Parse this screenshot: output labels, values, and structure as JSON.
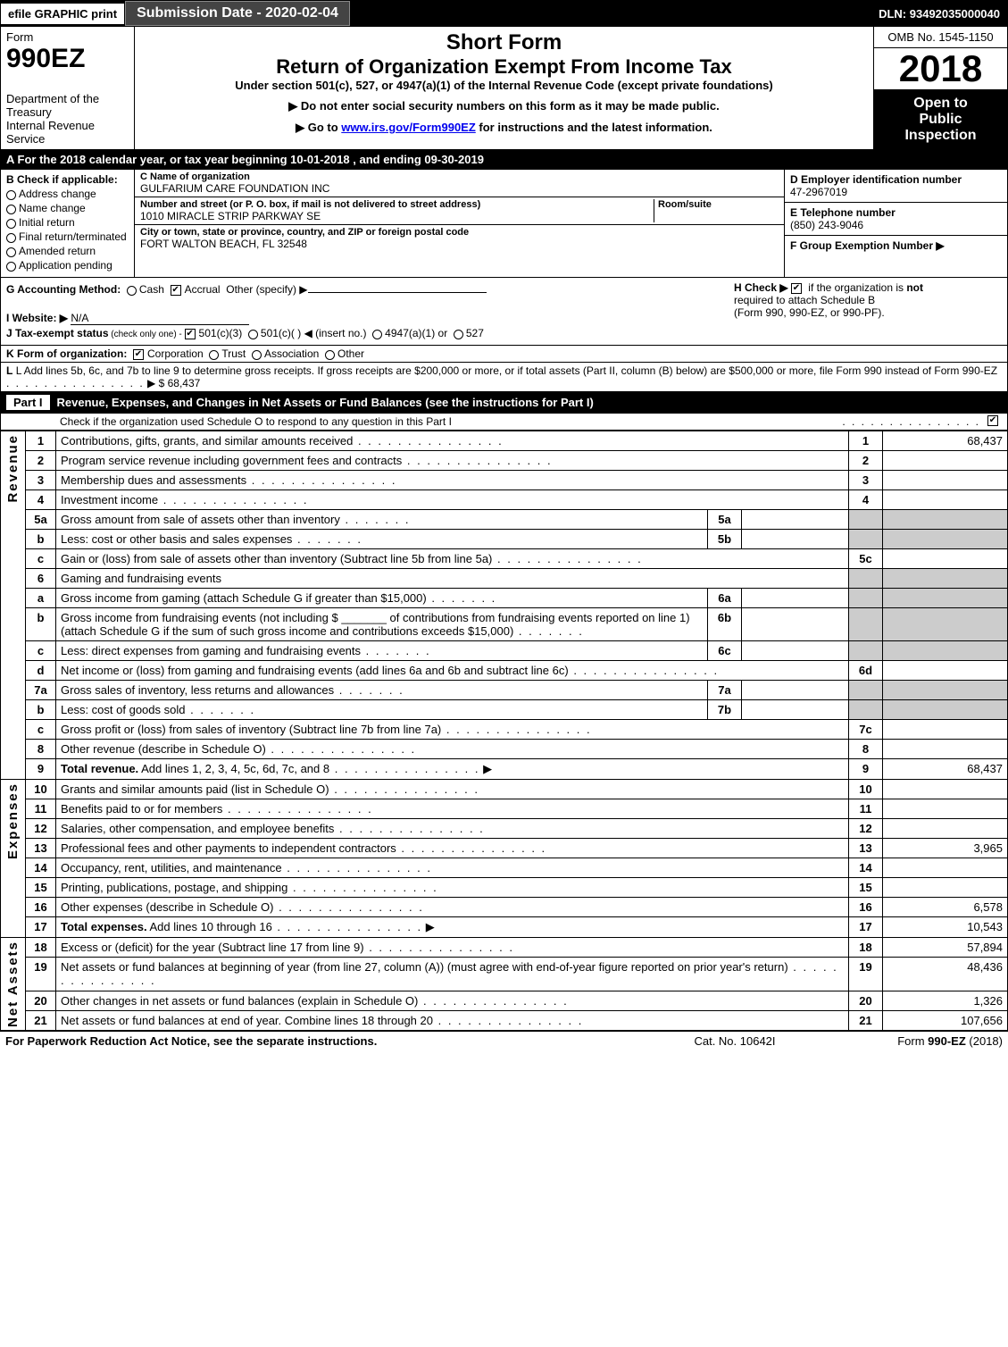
{
  "topbar": {
    "efile": "efile GRAPHIC print",
    "subdate_label": "Submission Date - ",
    "subdate": "2020-02-04",
    "dln_label": "DLN: ",
    "dln": "93492035000040"
  },
  "header": {
    "form_label": "Form",
    "form_number": "990EZ",
    "dept1": "Department of the Treasury",
    "dept2": "Internal Revenue Service",
    "short_form": "Short Form",
    "title": "Return of Organization Exempt From Income Tax",
    "subtitle": "Under section 501(c), 527, or 4947(a)(1) of the Internal Revenue Code (except private foundations)",
    "note1": "▶ Do not enter social security numbers on this form as it may be made public.",
    "note2_pre": "▶ Go to ",
    "note2_link": "www.irs.gov/Form990EZ",
    "note2_post": " for instructions and the latest information.",
    "omb": "OMB No. 1545-1150",
    "year": "2018",
    "inspect1": "Open to",
    "inspect2": "Public",
    "inspect3": "Inspection"
  },
  "period": {
    "text_a": "A  For the 2018 calendar year, or tax year beginning ",
    "begin": "10-01-2018",
    "text_b": " , and ending ",
    "end": "09-30-2019"
  },
  "sectionB": {
    "label": "B  Check if applicable:",
    "opts": [
      "Address change",
      "Name change",
      "Initial return",
      "Final return/terminated",
      "Amended return",
      "Application pending"
    ]
  },
  "sectionC": {
    "name_lbl": "C Name of organization",
    "name": "GULFARIUM CARE FOUNDATION INC",
    "addr_lbl": "Number and street (or P. O. box, if mail is not delivered to street address)",
    "room_lbl": "Room/suite",
    "addr": "1010 MIRACLE STRIP PARKWAY SE",
    "city_lbl": "City or town, state or province, country, and ZIP or foreign postal code",
    "city": "FORT WALTON BEACH, FL  32548"
  },
  "sectionD": {
    "ein_lbl": "D Employer identification number",
    "ein": "47-2967019",
    "tel_lbl": "E Telephone number",
    "tel": "(850) 243-9046",
    "grp_lbl": "F Group Exemption Number  ▶"
  },
  "meta": {
    "g_label": "G Accounting Method:",
    "g_cash": "Cash",
    "g_accrual": "Accrual",
    "g_other": "Other (specify) ▶",
    "h_label": "H  Check ▶",
    "h_text1": " if the organization is ",
    "h_not": "not",
    "h_text2": " required to attach Schedule B",
    "h_text3": "(Form 990, 990-EZ, or 990-PF).",
    "i_label": "I Website: ▶",
    "i_val": "N/A",
    "j_label": "J Tax-exempt status",
    "j_note": " (check only one) - ",
    "j_501c3": "501(c)(3)",
    "j_501c": "501(c)(  ) ◀ (insert no.)",
    "j_4947": "4947(a)(1) or",
    "j_527": "527"
  },
  "k": {
    "label": "K Form of organization:",
    "corp": "Corporation",
    "trust": "Trust",
    "assoc": "Association",
    "other": "Other"
  },
  "l": {
    "text1": "L Add lines 5b, 6c, and 7b to line 9 to determine gross receipts. If gross receipts are $200,000 or more, or if total assets (Part II, column (B) below) are $500,000 or more, file Form 990 instead of Form 990-EZ",
    "amount_label": "▶ $ ",
    "amount": "68,437"
  },
  "part1": {
    "tag": "Part I",
    "title": "Revenue, Expenses, and Changes in Net Assets or Fund Balances (see the instructions for Part I)",
    "check_line": "Check if the organization used Schedule O to respond to any question in this Part I"
  },
  "sections": {
    "revenue": "Revenue",
    "expenses": "Expenses",
    "netassets": "Net Assets"
  },
  "rows": [
    {
      "n": "1",
      "d": "Contributions, gifts, grants, and similar amounts received",
      "r": "1",
      "a": "68,437"
    },
    {
      "n": "2",
      "d": "Program service revenue including government fees and contracts",
      "r": "2",
      "a": ""
    },
    {
      "n": "3",
      "d": "Membership dues and assessments",
      "r": "3",
      "a": ""
    },
    {
      "n": "4",
      "d": "Investment income",
      "r": "4",
      "a": ""
    },
    {
      "n": "5a",
      "d": "Gross amount from sale of assets other than inventory",
      "sub": "5a",
      "subval": ""
    },
    {
      "n": "b",
      "d": "Less: cost or other basis and sales expenses",
      "sub": "5b",
      "subval": ""
    },
    {
      "n": "c",
      "d": "Gain or (loss) from sale of assets other than inventory (Subtract line 5b from line 5a)",
      "r": "5c",
      "a": ""
    },
    {
      "n": "6",
      "d": "Gaming and fundraising events",
      "plain": true
    },
    {
      "n": "a",
      "d": "Gross income from gaming (attach Schedule G if greater than $15,000)",
      "sub": "6a",
      "subval": ""
    },
    {
      "n": "b",
      "d": "Gross income from fundraising events (not including $ _______ of contributions from fundraising events reported on line 1) (attach Schedule G if the sum of such gross income and contributions exceeds $15,000)",
      "sub": "6b",
      "subval": ""
    },
    {
      "n": "c",
      "d": "Less: direct expenses from gaming and fundraising events",
      "sub": "6c",
      "subval": ""
    },
    {
      "n": "d",
      "d": "Net income or (loss) from gaming and fundraising events (add lines 6a and 6b and subtract line 6c)",
      "r": "6d",
      "a": ""
    },
    {
      "n": "7a",
      "d": "Gross sales of inventory, less returns and allowances",
      "sub": "7a",
      "subval": ""
    },
    {
      "n": "b",
      "d": "Less: cost of goods sold",
      "sub": "7b",
      "subval": ""
    },
    {
      "n": "c",
      "d": "Gross profit or (loss) from sales of inventory (Subtract line 7b from line 7a)",
      "r": "7c",
      "a": ""
    },
    {
      "n": "8",
      "d": "Other revenue (describe in Schedule O)",
      "r": "8",
      "a": ""
    },
    {
      "n": "9",
      "d": "Total revenue. Add lines 1, 2, 3, 4, 5c, 6d, 7c, and 8",
      "r": "9",
      "a": "68,437",
      "bold": true,
      "arrow": true
    }
  ],
  "exp_rows": [
    {
      "n": "10",
      "d": "Grants and similar amounts paid (list in Schedule O)",
      "r": "10",
      "a": ""
    },
    {
      "n": "11",
      "d": "Benefits paid to or for members",
      "r": "11",
      "a": ""
    },
    {
      "n": "12",
      "d": "Salaries, other compensation, and employee benefits",
      "r": "12",
      "a": ""
    },
    {
      "n": "13",
      "d": "Professional fees and other payments to independent contractors",
      "r": "13",
      "a": "3,965"
    },
    {
      "n": "14",
      "d": "Occupancy, rent, utilities, and maintenance",
      "r": "14",
      "a": ""
    },
    {
      "n": "15",
      "d": "Printing, publications, postage, and shipping",
      "r": "15",
      "a": ""
    },
    {
      "n": "16",
      "d": "Other expenses (describe in Schedule O)",
      "r": "16",
      "a": "6,578"
    },
    {
      "n": "17",
      "d": "Total expenses. Add lines 10 through 16",
      "r": "17",
      "a": "10,543",
      "bold": true,
      "arrow": true
    }
  ],
  "na_rows": [
    {
      "n": "18",
      "d": "Excess or (deficit) for the year (Subtract line 17 from line 9)",
      "r": "18",
      "a": "57,894"
    },
    {
      "n": "19",
      "d": "Net assets or fund balances at beginning of year (from line 27, column (A)) (must agree with end-of-year figure reported on prior year's return)",
      "r": "19",
      "a": "48,436"
    },
    {
      "n": "20",
      "d": "Other changes in net assets or fund balances (explain in Schedule O)",
      "r": "20",
      "a": "1,326"
    },
    {
      "n": "21",
      "d": "Net assets or fund balances at end of year. Combine lines 18 through 20",
      "r": "21",
      "a": "107,656"
    }
  ],
  "footer": {
    "left": "For Paperwork Reduction Act Notice, see the separate instructions.",
    "center": "Cat. No. 10642I",
    "right_pre": "Form ",
    "right_form": "990-EZ",
    "right_year": " (2018)"
  }
}
